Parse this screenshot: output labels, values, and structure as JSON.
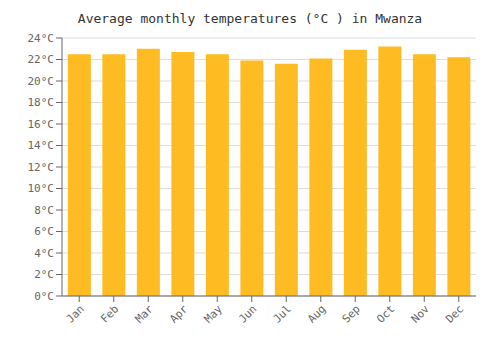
{
  "chart_data": {
    "type": "bar",
    "title": "Average monthly temperatures (°C ) in Mwanza",
    "categories": [
      "Jan",
      "Feb",
      "Mar",
      "Apr",
      "May",
      "Jun",
      "Jul",
      "Aug",
      "Sep",
      "Oct",
      "Nov",
      "Dec"
    ],
    "values": [
      22.5,
      22.5,
      23.0,
      22.7,
      22.5,
      21.9,
      21.6,
      22.1,
      22.9,
      23.2,
      22.5,
      22.2
    ],
    "color": "#FFBB22",
    "ylim": [
      0,
      24
    ],
    "yticks": [
      {
        "value": 0,
        "label": "0°C"
      },
      {
        "value": 2,
        "label": "2°C"
      },
      {
        "value": 4,
        "label": "4°C"
      },
      {
        "value": 6,
        "label": "6°C"
      },
      {
        "value": 8,
        "label": "8°C"
      },
      {
        "value": 10,
        "label": "10°C"
      },
      {
        "value": 12,
        "label": "12°C"
      },
      {
        "value": 14,
        "label": "14°C"
      },
      {
        "value": 16,
        "label": "16°C"
      },
      {
        "value": 18,
        "label": "18°C"
      },
      {
        "value": 20,
        "label": "20°C"
      },
      {
        "value": 22,
        "label": "22°C"
      },
      {
        "value": 24,
        "label": "24°C"
      }
    ],
    "grid": true
  }
}
